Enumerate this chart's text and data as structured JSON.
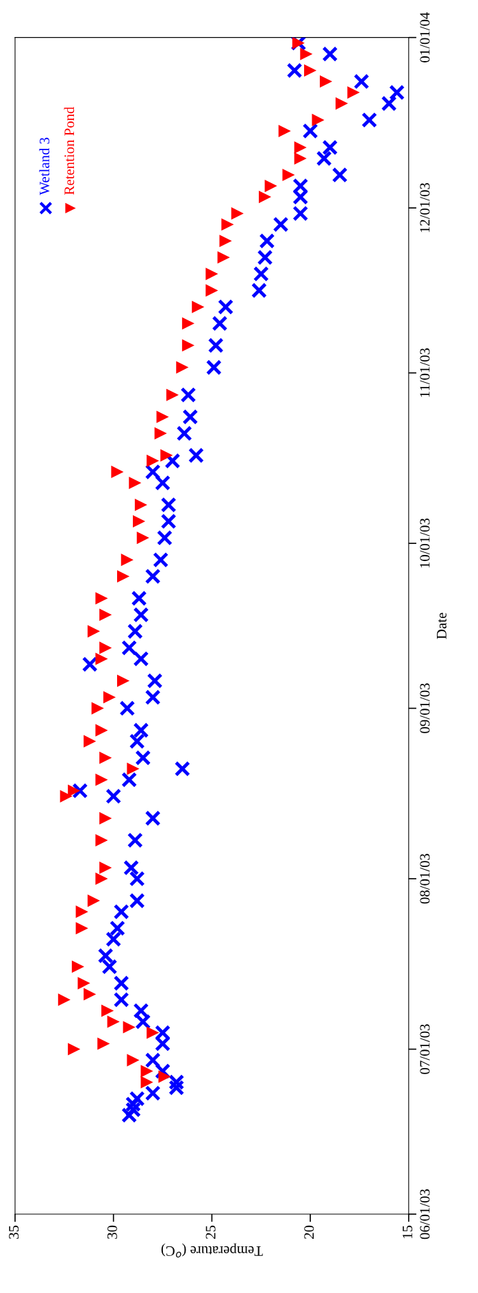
{
  "chart_data": {
    "type": "scatter",
    "orientation": "horizontal",
    "xlabel": "Temperature ($^{o}$C)",
    "ylabel": "Date",
    "xlim": [
      35,
      15
    ],
    "xticks": [
      35,
      30,
      25,
      20,
      15
    ],
    "ylim": [
      "2003-06-01",
      "2004-01-01"
    ],
    "yticks": [
      {
        "value": "2003-06-01",
        "label": "06/01/03"
      },
      {
        "value": "2003-07-01",
        "label": "07/01/03"
      },
      {
        "value": "2003-08-01",
        "label": "08/01/03"
      },
      {
        "value": "2003-09-01",
        "label": "09/01/03"
      },
      {
        "value": "2003-10-01",
        "label": "10/01/03"
      },
      {
        "value": "2003-11-01",
        "label": "11/01/03"
      },
      {
        "value": "2003-12-01",
        "label": "12/01/03"
      },
      {
        "value": "2004-01-01",
        "label": "01/01/04"
      }
    ],
    "grid": false,
    "legend": "top left",
    "series": [
      {
        "name": "Wetland 3",
        "color": "#0000ff",
        "marker": "cross",
        "x": [
          "2003-06-19",
          "2003-06-20",
          "2003-06-21",
          "2003-06-22",
          "2003-06-23",
          "2003-06-24",
          "2003-06-25",
          "2003-06-27",
          "2003-06-29",
          "2003-07-02",
          "2003-07-04",
          "2003-07-06",
          "2003-07-08",
          "2003-07-10",
          "2003-07-13",
          "2003-07-16",
          "2003-07-18",
          "2003-07-21",
          "2003-07-23",
          "2003-07-26",
          "2003-07-28",
          "2003-08-01",
          "2003-08-03",
          "2003-08-08",
          "2003-08-12",
          "2003-08-16",
          "2003-08-17",
          "2003-08-19",
          "2003-08-21",
          "2003-08-23",
          "2003-08-26",
          "2003-08-28",
          "2003-09-01",
          "2003-09-03",
          "2003-09-06",
          "2003-09-09",
          "2003-09-10",
          "2003-09-12",
          "2003-09-15",
          "2003-09-18",
          "2003-09-21",
          "2003-09-25",
          "2003-09-28",
          "2003-10-02",
          "2003-10-05",
          "2003-10-08",
          "2003-10-12",
          "2003-10-14",
          "2003-10-16",
          "2003-10-17",
          "2003-10-21",
          "2003-10-24",
          "2003-10-28",
          "2003-11-02",
          "2003-11-06",
          "2003-11-10",
          "2003-11-13",
          "2003-11-16",
          "2003-11-19",
          "2003-11-22",
          "2003-11-25",
          "2003-11-28",
          "2003-11-30",
          "2003-12-03",
          "2003-12-05",
          "2003-12-07",
          "2003-12-10",
          "2003-12-12",
          "2003-12-15",
          "2003-12-17",
          "2003-12-20",
          "2003-12-22",
          "2003-12-24",
          "2003-12-26",
          "2003-12-29",
          "2003-12-31"
        ],
        "values": [
          29.2,
          29.0,
          29.0,
          28.8,
          28.0,
          26.8,
          26.8,
          27.5,
          28.0,
          27.5,
          27.5,
          28.5,
          28.6,
          29.6,
          29.6,
          30.2,
          30.4,
          30.0,
          29.8,
          29.6,
          28.8,
          28.8,
          29.1,
          28.9,
          28.0,
          30.0,
          31.7,
          29.2,
          26.5,
          28.5,
          28.8,
          28.6,
          29.3,
          28.0,
          27.9,
          31.2,
          28.6,
          29.2,
          28.9,
          28.6,
          28.7,
          28.0,
          27.6,
          27.4,
          27.2,
          27.2,
          27.5,
          28.0,
          27.0,
          25.8,
          26.4,
          26.1,
          26.2,
          24.9,
          24.8,
          24.6,
          24.3,
          22.6,
          22.5,
          22.3,
          22.2,
          21.5,
          20.5,
          20.5,
          20.5,
          18.5,
          19.3,
          19.0,
          20.0,
          17.0,
          16.0,
          15.6,
          17.4,
          20.8,
          19.0,
          20.6
        ]
      },
      {
        "name": "Retention Pond",
        "color": "#ff0000",
        "marker": "triangle",
        "x": [
          "2003-06-25",
          "2003-06-26",
          "2003-06-27",
          "2003-06-29",
          "2003-07-01",
          "2003-07-02",
          "2003-07-04",
          "2003-07-05",
          "2003-07-06",
          "2003-07-08",
          "2003-07-10",
          "2003-07-11",
          "2003-07-13",
          "2003-07-16",
          "2003-07-23",
          "2003-07-26",
          "2003-07-28",
          "2003-08-01",
          "2003-08-03",
          "2003-08-08",
          "2003-08-12",
          "2003-08-16",
          "2003-08-17",
          "2003-08-19",
          "2003-08-21",
          "2003-08-23",
          "2003-08-26",
          "2003-08-28",
          "2003-09-01",
          "2003-09-03",
          "2003-09-06",
          "2003-09-10",
          "2003-09-12",
          "2003-09-15",
          "2003-09-18",
          "2003-09-21",
          "2003-09-25",
          "2003-09-28",
          "2003-10-02",
          "2003-10-05",
          "2003-10-08",
          "2003-10-12",
          "2003-10-14",
          "2003-10-16",
          "2003-10-17",
          "2003-10-21",
          "2003-10-24",
          "2003-10-28",
          "2003-11-02",
          "2003-11-06",
          "2003-11-10",
          "2003-11-13",
          "2003-11-16",
          "2003-11-19",
          "2003-11-22",
          "2003-11-25",
          "2003-11-28",
          "2003-11-30",
          "2003-12-03",
          "2003-12-05",
          "2003-12-07",
          "2003-12-10",
          "2003-12-12",
          "2003-12-15",
          "2003-12-17",
          "2003-12-20",
          "2003-12-22",
          "2003-12-24",
          "2003-12-26",
          "2003-12-29",
          "2003-12-31"
        ],
        "values": [
          28.3,
          27.4,
          28.3,
          29.0,
          32.0,
          30.5,
          28.0,
          29.2,
          30.0,
          30.3,
          32.5,
          31.2,
          31.5,
          31.8,
          31.6,
          31.6,
          31.0,
          30.6,
          30.4,
          30.6,
          30.4,
          32.4,
          32.0,
          30.6,
          29.0,
          30.4,
          31.2,
          30.6,
          30.8,
          30.2,
          29.5,
          30.6,
          30.4,
          31.0,
          30.4,
          30.6,
          29.5,
          29.3,
          28.5,
          28.7,
          28.6,
          28.9,
          29.8,
          28.0,
          27.3,
          27.6,
          27.5,
          27.0,
          26.5,
          26.2,
          26.2,
          25.7,
          25.0,
          25.0,
          24.4,
          24.3,
          24.2,
          23.7,
          22.3,
          22.0,
          21.1,
          20.5,
          20.5,
          21.3,
          19.6,
          18.4,
          17.8,
          19.2,
          20.0,
          20.2,
          20.6
        ]
      }
    ]
  }
}
